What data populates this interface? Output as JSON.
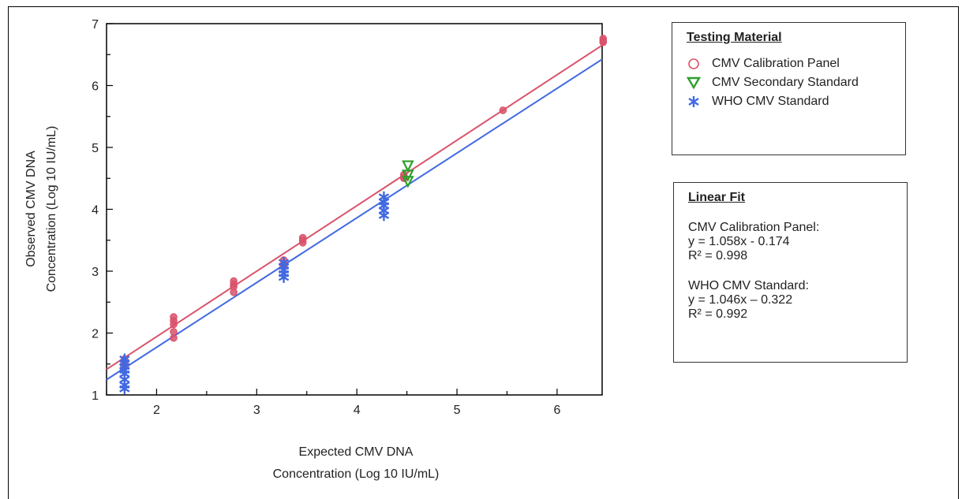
{
  "chart_data": {
    "type": "scatter",
    "xlabel_line1": "Expected CMV DNA",
    "xlabel_line2": "Concentration (Log 10 IU/mL)",
    "ylabel_line1": "Observed CMV DNA",
    "ylabel_line2": "Concentration (Log 10 IU/mL)",
    "xlim": [
      1.5,
      6.45
    ],
    "ylim": [
      1,
      7
    ],
    "xticks": [
      2,
      3,
      4,
      5,
      6
    ],
    "yticks": [
      1,
      2,
      3,
      4,
      5,
      6,
      7
    ],
    "grid": false,
    "series": [
      {
        "name": "CMV Calibration Panel",
        "marker": "circle",
        "color": "#d9536b",
        "points": [
          [
            1.68,
            1.58
          ],
          [
            1.68,
            1.52
          ],
          [
            1.68,
            1.5
          ],
          [
            1.68,
            1.46
          ],
          [
            2.17,
            2.26
          ],
          [
            2.17,
            2.2
          ],
          [
            2.17,
            2.14
          ],
          [
            2.17,
            2.02
          ],
          [
            2.17,
            1.92
          ],
          [
            2.77,
            2.84
          ],
          [
            2.77,
            2.79
          ],
          [
            2.77,
            2.75
          ],
          [
            2.77,
            2.66
          ],
          [
            3.27,
            3.18
          ],
          [
            3.27,
            3.12
          ],
          [
            3.27,
            3.08
          ],
          [
            3.46,
            3.54
          ],
          [
            3.46,
            3.5
          ],
          [
            3.46,
            3.46
          ],
          [
            4.47,
            4.56
          ],
          [
            4.47,
            4.52
          ],
          [
            4.47,
            4.5
          ],
          [
            5.46,
            5.6
          ],
          [
            6.46,
            6.76
          ],
          [
            6.46,
            6.72
          ],
          [
            6.46,
            6.7
          ]
        ]
      },
      {
        "name": "CMV Secondary Standard",
        "marker": "triangle-down",
        "color": "#2ca02c",
        "points": [
          [
            4.51,
            4.7
          ],
          [
            4.51,
            4.55
          ],
          [
            4.51,
            4.45
          ]
        ]
      },
      {
        "name": "WHO CMV Standard",
        "marker": "asterisk",
        "color": "#4169e1",
        "points": [
          [
            1.68,
            1.58
          ],
          [
            1.68,
            1.52
          ],
          [
            1.68,
            1.46
          ],
          [
            1.68,
            1.4
          ],
          [
            1.68,
            1.34
          ],
          [
            1.68,
            1.25
          ],
          [
            1.68,
            1.16
          ],
          [
            1.68,
            1.1
          ],
          [
            3.27,
            3.14
          ],
          [
            3.27,
            3.08
          ],
          [
            3.27,
            3.02
          ],
          [
            3.27,
            2.96
          ],
          [
            3.27,
            2.9
          ],
          [
            4.27,
            4.2
          ],
          [
            4.27,
            4.12
          ],
          [
            4.27,
            4.06
          ],
          [
            4.27,
            3.98
          ],
          [
            4.27,
            3.9
          ]
        ]
      }
    ],
    "fit_lines": [
      {
        "series": "CMV Calibration Panel",
        "slope": 1.058,
        "intercept": -0.174,
        "color": "#d9536b"
      },
      {
        "series": "WHO CMV Standard",
        "slope": 1.046,
        "intercept": -0.322,
        "color": "#4169e1"
      }
    ]
  },
  "legend": {
    "title": "Testing Material",
    "position": "top-right",
    "items": [
      "CMV Calibration Panel",
      "CMV Secondary Standard",
      "WHO CMV Standard"
    ]
  },
  "fit_box": {
    "title": "Linear Fit",
    "cal_label": "CMV Calibration  Panel:",
    "cal_eq": "y = 1.058x - 0.174",
    "cal_r2": "R² = 0.998",
    "who_label": "WHO CMV Standard:",
    "who_eq": "y = 1.046x – 0.322",
    "who_r2": "R² = 0.992"
  }
}
